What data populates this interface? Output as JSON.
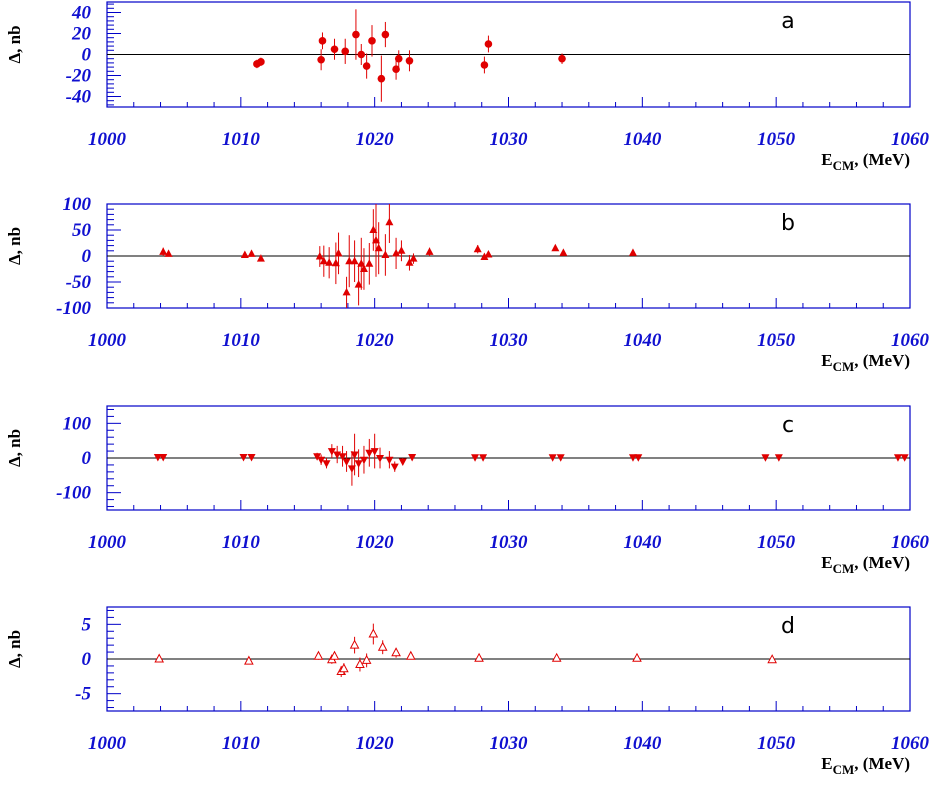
{
  "chart_data": [
    {
      "type": "scatter",
      "panel": "a",
      "ylabel": "Δ, nb",
      "xlabel": "E_CM, (MeV)",
      "xlim": [
        1000,
        1060
      ],
      "ylim": [
        -50,
        50
      ],
      "x_ticks": [
        1000,
        1010,
        1020,
        1030,
        1040,
        1050,
        1060
      ],
      "y_ticks": [
        -40,
        -20,
        0,
        20,
        40
      ],
      "marker": "filled-circle",
      "color": "#e00000",
      "points": [
        {
          "x": 1011.2,
          "y": -9,
          "err": 4
        },
        {
          "x": 1011.5,
          "y": -7,
          "err": 4
        },
        {
          "x": 1016.0,
          "y": -5,
          "err": 10
        },
        {
          "x": 1016.1,
          "y": 13,
          "err": 8
        },
        {
          "x": 1017.0,
          "y": 5,
          "err": 10
        },
        {
          "x": 1017.8,
          "y": 3,
          "err": 12
        },
        {
          "x": 1018.6,
          "y": 19,
          "err": 24
        },
        {
          "x": 1019.0,
          "y": 0,
          "err": 10
        },
        {
          "x": 1019.4,
          "y": -11,
          "err": 12
        },
        {
          "x": 1019.8,
          "y": 13,
          "err": 15
        },
        {
          "x": 1020.5,
          "y": -23,
          "err": 22
        },
        {
          "x": 1020.8,
          "y": 19,
          "err": 12
        },
        {
          "x": 1021.6,
          "y": -14,
          "err": 10
        },
        {
          "x": 1021.8,
          "y": -4,
          "err": 8
        },
        {
          "x": 1022.6,
          "y": -6,
          "err": 10
        },
        {
          "x": 1028.2,
          "y": -10,
          "err": 8
        },
        {
          "x": 1028.5,
          "y": 10,
          "err": 8
        },
        {
          "x": 1034.0,
          "y": -4,
          "err": 5
        }
      ]
    },
    {
      "type": "scatter",
      "panel": "b",
      "ylabel": "Δ, nb",
      "xlabel": "E_CM, (MeV)",
      "xlim": [
        1000,
        1060
      ],
      "ylim": [
        -100,
        100
      ],
      "x_ticks": [
        1000,
        1010,
        1020,
        1030,
        1040,
        1050,
        1060
      ],
      "y_ticks": [
        -100,
        -50,
        0,
        50,
        100
      ],
      "marker": "filled-triangle-up",
      "color": "#e00000",
      "points": [
        {
          "x": 1004.2,
          "y": 8,
          "err": 8
        },
        {
          "x": 1004.6,
          "y": 4,
          "err": 5
        },
        {
          "x": 1010.3,
          "y": 2,
          "err": 4
        },
        {
          "x": 1010.8,
          "y": 4,
          "err": 4
        },
        {
          "x": 1011.5,
          "y": -5,
          "err": 5
        },
        {
          "x": 1015.9,
          "y": -1,
          "err": 20
        },
        {
          "x": 1016.2,
          "y": -10,
          "err": 30
        },
        {
          "x": 1016.6,
          "y": -13,
          "err": 30
        },
        {
          "x": 1017.1,
          "y": -14,
          "err": 40
        },
        {
          "x": 1017.3,
          "y": 5,
          "err": 40
        },
        {
          "x": 1017.9,
          "y": -70,
          "err": 30
        },
        {
          "x": 1018.1,
          "y": -10,
          "err": 50
        },
        {
          "x": 1018.5,
          "y": -10,
          "err": 40
        },
        {
          "x": 1018.8,
          "y": -55,
          "err": 40
        },
        {
          "x": 1019.0,
          "y": -15,
          "err": 50
        },
        {
          "x": 1019.2,
          "y": -25,
          "err": 40
        },
        {
          "x": 1019.6,
          "y": -15,
          "err": 40
        },
        {
          "x": 1019.9,
          "y": 50,
          "err": 40
        },
        {
          "x": 1020.1,
          "y": 30,
          "err": 70
        },
        {
          "x": 1020.3,
          "y": 15,
          "err": 50
        },
        {
          "x": 1020.8,
          "y": 2,
          "err": 40
        },
        {
          "x": 1021.1,
          "y": 65,
          "err": 40
        },
        {
          "x": 1021.6,
          "y": 5,
          "err": 30
        },
        {
          "x": 1022.0,
          "y": 10,
          "err": 20
        },
        {
          "x": 1022.6,
          "y": -13,
          "err": 15
        },
        {
          "x": 1022.9,
          "y": -5,
          "err": 10
        },
        {
          "x": 1024.1,
          "y": 8,
          "err": 8
        },
        {
          "x": 1027.7,
          "y": 13,
          "err": 8
        },
        {
          "x": 1028.2,
          "y": -2,
          "err": 5
        },
        {
          "x": 1028.5,
          "y": 3,
          "err": 5
        },
        {
          "x": 1033.5,
          "y": 15,
          "err": 5
        },
        {
          "x": 1034.1,
          "y": 6,
          "err": 4
        },
        {
          "x": 1039.3,
          "y": 6,
          "err": 3
        }
      ]
    },
    {
      "type": "scatter",
      "panel": "c",
      "ylabel": "Δ, nb",
      "xlabel": "E_CM, (MeV)",
      "xlim": [
        1000,
        1060
      ],
      "ylim": [
        -150,
        150
      ],
      "x_ticks": [
        1000,
        1010,
        1020,
        1030,
        1040,
        1050,
        1060
      ],
      "y_ticks": [
        -100,
        0,
        100
      ],
      "marker": "filled-triangle-down",
      "color": "#e00000",
      "points": [
        {
          "x": 1003.8,
          "y": 3,
          "err": 6
        },
        {
          "x": 1004.2,
          "y": 3,
          "err": 6
        },
        {
          "x": 1010.2,
          "y": 3,
          "err": 6
        },
        {
          "x": 1010.8,
          "y": 3,
          "err": 6
        },
        {
          "x": 1015.7,
          "y": 5,
          "err": 10
        },
        {
          "x": 1016.0,
          "y": -5,
          "err": 15
        },
        {
          "x": 1016.4,
          "y": -15,
          "err": 15
        },
        {
          "x": 1016.8,
          "y": 20,
          "err": 20
        },
        {
          "x": 1017.2,
          "y": 10,
          "err": 25
        },
        {
          "x": 1017.6,
          "y": 5,
          "err": 30
        },
        {
          "x": 1017.9,
          "y": -10,
          "err": 30
        },
        {
          "x": 1018.3,
          "y": -30,
          "err": 50
        },
        {
          "x": 1018.5,
          "y": 10,
          "err": 60
        },
        {
          "x": 1018.8,
          "y": -15,
          "err": 40
        },
        {
          "x": 1019.2,
          "y": -5,
          "err": 40
        },
        {
          "x": 1019.6,
          "y": 15,
          "err": 40
        },
        {
          "x": 1020.0,
          "y": 20,
          "err": 50
        },
        {
          "x": 1020.4,
          "y": 0,
          "err": 30
        },
        {
          "x": 1021.1,
          "y": -5,
          "err": 25
        },
        {
          "x": 1021.5,
          "y": -25,
          "err": 15
        },
        {
          "x": 1022.1,
          "y": -10,
          "err": 10
        },
        {
          "x": 1022.8,
          "y": 3,
          "err": 8
        },
        {
          "x": 1027.5,
          "y": 2,
          "err": 5
        },
        {
          "x": 1028.1,
          "y": 2,
          "err": 5
        },
        {
          "x": 1033.3,
          "y": 2,
          "err": 4
        },
        {
          "x": 1033.9,
          "y": 2,
          "err": 4
        },
        {
          "x": 1039.3,
          "y": 2,
          "err": 4
        },
        {
          "x": 1039.7,
          "y": 2,
          "err": 4
        },
        {
          "x": 1049.2,
          "y": 2,
          "err": 4
        },
        {
          "x": 1050.2,
          "y": 2,
          "err": 4
        },
        {
          "x": 1059.1,
          "y": 2,
          "err": 4
        },
        {
          "x": 1059.6,
          "y": 2,
          "err": 4
        }
      ]
    },
    {
      "type": "scatter",
      "panel": "d",
      "ylabel": "Δ, nb",
      "xlabel": "E_CM, (MeV)",
      "xlim": [
        1000,
        1060
      ],
      "ylim": [
        -7.5,
        7.5
      ],
      "x_ticks": [
        1000,
        1010,
        1020,
        1030,
        1040,
        1050,
        1060
      ],
      "y_ticks": [
        -5,
        0,
        5
      ],
      "marker": "open-triangle-up",
      "color": "#e00000",
      "points": [
        {
          "x": 1003.9,
          "y": 0,
          "err": 0.3
        },
        {
          "x": 1010.6,
          "y": -0.3,
          "err": 0.3
        },
        {
          "x": 1015.8,
          "y": 0.4,
          "err": 0.5
        },
        {
          "x": 1016.8,
          "y": -0.1,
          "err": 0.6
        },
        {
          "x": 1017.0,
          "y": 0.4,
          "err": 0.7
        },
        {
          "x": 1017.5,
          "y": -1.8,
          "err": 0.8
        },
        {
          "x": 1017.7,
          "y": -1.4,
          "err": 0.8
        },
        {
          "x": 1018.5,
          "y": 2.0,
          "err": 1.2
        },
        {
          "x": 1018.9,
          "y": -0.8,
          "err": 1.0
        },
        {
          "x": 1019.4,
          "y": -0.2,
          "err": 1.0
        },
        {
          "x": 1019.9,
          "y": 3.6,
          "err": 1.5
        },
        {
          "x": 1020.6,
          "y": 1.7,
          "err": 1.0
        },
        {
          "x": 1021.6,
          "y": 0.9,
          "err": 0.7
        },
        {
          "x": 1022.7,
          "y": 0.4,
          "err": 0.4
        },
        {
          "x": 1027.8,
          "y": 0.1,
          "err": 0.3
        },
        {
          "x": 1033.6,
          "y": 0.1,
          "err": 0.3
        },
        {
          "x": 1039.6,
          "y": 0.1,
          "err": 0.3
        },
        {
          "x": 1049.7,
          "y": -0.1,
          "err": 0.3
        }
      ]
    }
  ]
}
